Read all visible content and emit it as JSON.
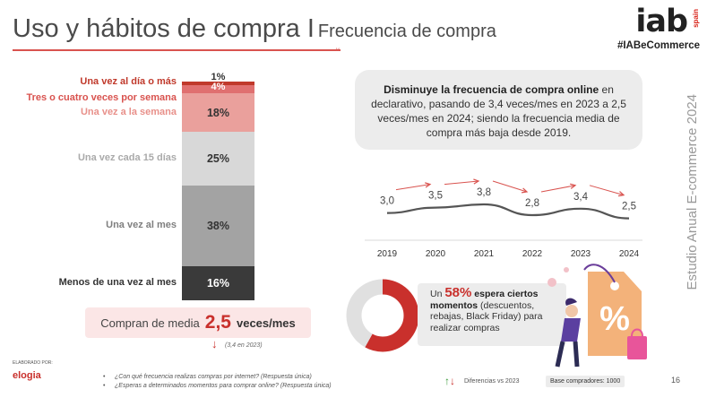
{
  "header": {
    "title": "Uso y hábitos de compra I",
    "subtitle": "Frecuencia de compra",
    "logo": "iab",
    "logo_sub": "spain",
    "hashtag": "#IABeCommerce"
  },
  "chart_data": [
    {
      "type": "bar",
      "stacked": true,
      "orientation": "vertical",
      "unit": "%",
      "categories": [
        "Una vez al día o más",
        "Tres o cuatro veces por semana",
        "Una vez a la semana",
        "Una vez cada 15 días",
        "Una vez al mes",
        "Menos de una vez al mes"
      ],
      "values": [
        1,
        4,
        18,
        25,
        38,
        16
      ],
      "value_labels": [
        "1%",
        "4%",
        "18%",
        "25%",
        "38%",
        "16%"
      ],
      "colors": [
        "#c0392b",
        "#e07070",
        "#eaa09c",
        "#d8d8d8",
        "#a3a3a3",
        "#3a3a3a"
      ],
      "label_colors": [
        "#c0392b",
        "#d9534f",
        "#e8908a",
        "#aaaaaa",
        "#7f7f7f",
        "#333333"
      ]
    },
    {
      "type": "line",
      "x": [
        "2019",
        "2020",
        "2021",
        "2022",
        "2023",
        "2024"
      ],
      "values": [
        3.0,
        3.5,
        3.8,
        2.8,
        3.4,
        2.5
      ],
      "value_labels": [
        "3,0",
        "3,5",
        "3,8",
        "2,8",
        "3,4",
        "2,5"
      ],
      "trend_colors": {
        "up": "#d9534f",
        "down": "#d9534f"
      }
    },
    {
      "type": "pie",
      "donut": true,
      "values": [
        58,
        42
      ],
      "colors": [
        "#c9302c",
        "#e0e0e0"
      ]
    }
  ],
  "summary": {
    "avg_prefix": "Compran de media",
    "avg_value": "2,5",
    "avg_unit": "veces/mes",
    "prev_arrow": "↓",
    "previous": "(3,4 en 2023)"
  },
  "info": {
    "bold": "Disminuye la frecuencia de compra online",
    "text": " en declarativo, pasando de 3,4 veces/mes en 2023 a 2,5 veces/mes en 2024; siendo la frecuencia media de compra más baja desde 2019."
  },
  "promo": {
    "prefix": "Un ",
    "pct": "58%",
    "bold": " espera ciertos momentos",
    "text": " (descuentos, rebajas, Black Friday) para realizar compras",
    "tag_symbol": "%"
  },
  "side_text": "Estudio Anual E-commerce  2024",
  "footer": {
    "elaborado": "ELABORADO POR:",
    "brand": "elogia",
    "questions": [
      "¿Con qué frecuencia realizas compras por internet? (Respuesta única)",
      "¿Esperas a determinados momentos para comprar online? (Respuesta única)"
    ],
    "diff_up": "↑",
    "diff_down": "↓",
    "diff_label": "Diferencias vs 2023",
    "base": "Base compradores: 1000",
    "page": "16"
  }
}
